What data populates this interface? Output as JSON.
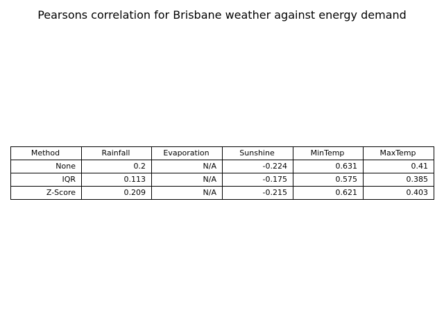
{
  "chart_data": {
    "type": "table",
    "title": "Pearsons correlation for Brisbane weather against energy demand",
    "columns": [
      "Method",
      "Rainfall",
      "Evaporation",
      "Sunshine",
      "MinTemp",
      "MaxTemp"
    ],
    "rows": [
      [
        "None",
        "0.2",
        "N/A",
        "-0.224",
        "0.631",
        "0.41"
      ],
      [
        "IQR",
        "0.113",
        "N/A",
        "-0.175",
        "0.575",
        "0.385"
      ],
      [
        "Z-Score",
        "0.209",
        "N/A",
        "-0.215",
        "0.621",
        "0.403"
      ]
    ]
  }
}
